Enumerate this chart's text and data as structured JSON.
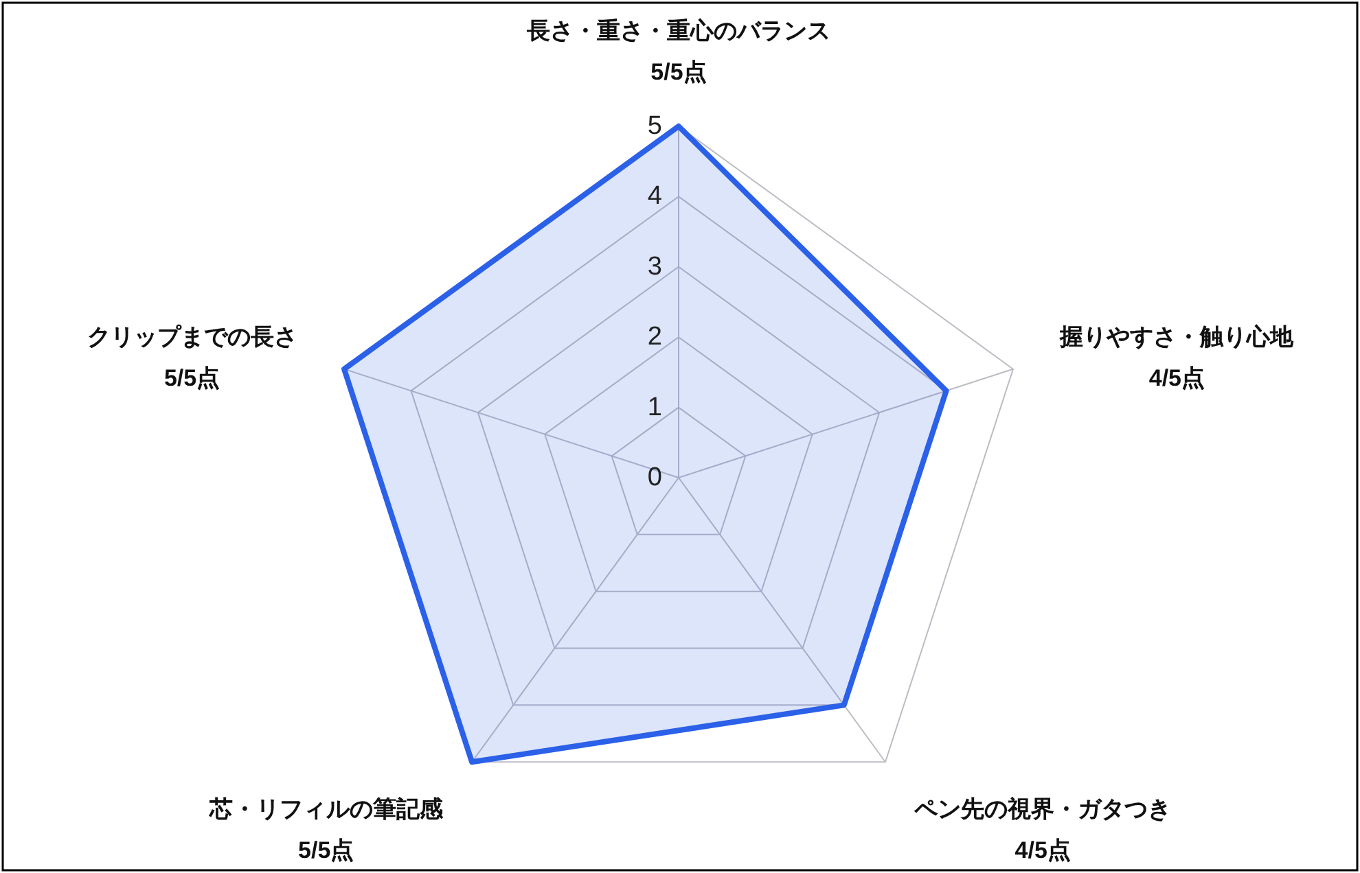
{
  "chart_data": {
    "type": "radar",
    "categories": [
      "長さ・重さ・重心のバランス\n5/5点",
      "握りやすさ・触り心地\n4/5点",
      "ペン先の視界・ガタつき\n4/5点",
      "芯・リフィルの筆記感\n5/5点",
      "クリップまでの長さ\n5/5点"
    ],
    "values": [
      5,
      4,
      4,
      5,
      5
    ],
    "color": "#2b60e8",
    "ylim": [
      0,
      5
    ],
    "yticks": [
      0,
      1,
      2,
      3,
      4,
      5
    ],
    "grid": true
  }
}
